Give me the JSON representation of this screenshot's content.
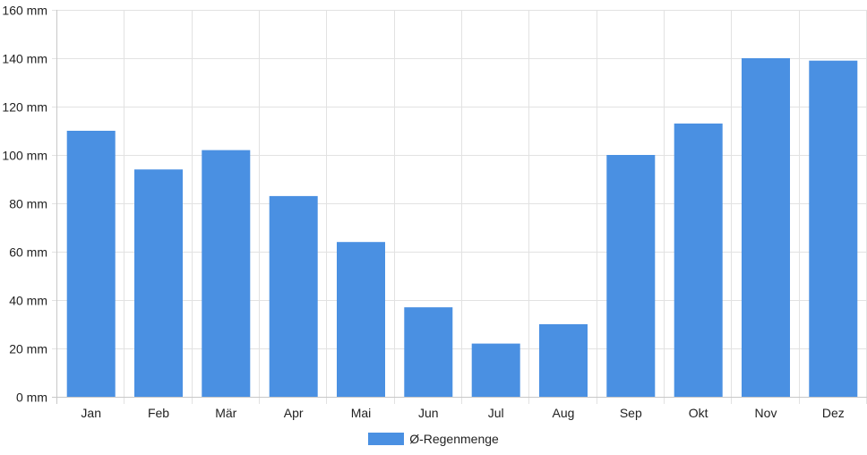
{
  "chart_data": {
    "type": "bar",
    "title": "",
    "xlabel": "",
    "ylabel": "",
    "categories": [
      "Jan",
      "Feb",
      "Mär",
      "Apr",
      "Mai",
      "Jun",
      "Jul",
      "Aug",
      "Sep",
      "Okt",
      "Nov",
      "Dez"
    ],
    "series": [
      {
        "name": "Ø-Regenmenge",
        "values": [
          110,
          94,
          102,
          83,
          64,
          37,
          22,
          30,
          100,
          113,
          140,
          139
        ]
      }
    ],
    "ylim": [
      0,
      160
    ],
    "y_ticks": [
      0,
      20,
      40,
      60,
      80,
      100,
      120,
      140,
      160
    ],
    "y_unit": "mm",
    "grid": true,
    "legend_position": "bottom-center",
    "colors": {
      "bar": "#4a90e2",
      "grid": "#e2e2e2",
      "axis": "#c8c8c8"
    }
  }
}
